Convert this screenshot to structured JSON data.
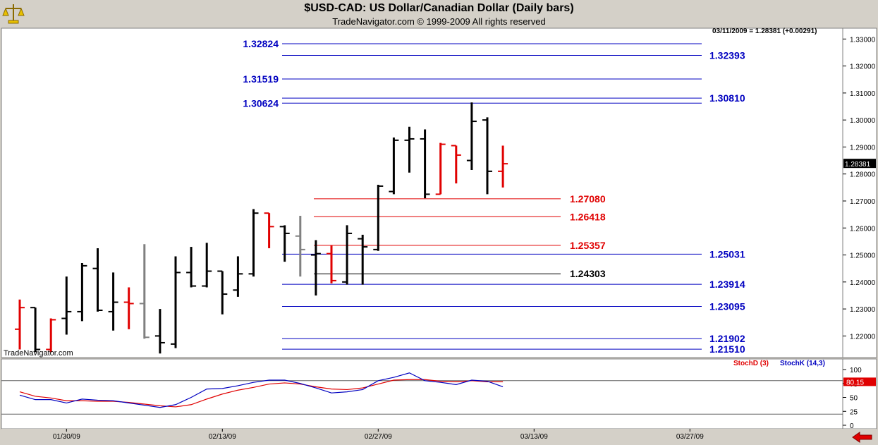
{
  "header": {
    "title": "$USD-CAD:  US Dollar/Canadian Dollar  (Daily bars)",
    "copyright": "TradeNavigator.com © 1999-2009 All rights reserved",
    "last_quote": "03/11/2009 = 1.28381 (+0.00291)",
    "watermark": "TradeNavigator.com"
  },
  "chart_data": [
    {
      "type": "ohlc",
      "title": "$USD-CAD:  US Dollar/Canadian Dollar  (Daily bars)",
      "ylim": [
        1.212,
        1.334
      ],
      "y_ticks": [
        "1.22000",
        "1.23000",
        "1.24000",
        "1.25000",
        "1.26000",
        "1.27000",
        "1.28000",
        "1.29000",
        "1.30000",
        "1.31000",
        "1.32000",
        "1.33000"
      ],
      "y_tick_values": [
        1.22,
        1.23,
        1.24,
        1.25,
        1.26,
        1.27,
        1.28,
        1.29,
        1.3,
        1.31,
        1.32,
        1.33
      ],
      "x_ticks": [
        {
          "label": "01/30/09",
          "index": 3
        },
        {
          "label": "02/13/09",
          "index": 13
        },
        {
          "label": "02/27/09",
          "index": 23
        },
        {
          "label": "03/13/09",
          "index": 33
        },
        {
          "label": "03/27/09",
          "index": 43
        }
      ],
      "last_price_label": "1.28381",
      "bars": [
        {
          "o": 1.2225,
          "h": 1.2335,
          "l": 1.215,
          "c": 1.2305,
          "color": "red"
        },
        {
          "o": 1.2305,
          "h": 1.2305,
          "l": 1.214,
          "c": 1.215,
          "color": "black"
        },
        {
          "o": 1.215,
          "h": 1.2265,
          "l": 1.214,
          "c": 1.226,
          "color": "red"
        },
        {
          "o": 1.2265,
          "h": 1.242,
          "l": 1.2205,
          "c": 1.229,
          "color": "black"
        },
        {
          "o": 1.229,
          "h": 1.247,
          "l": 1.2255,
          "c": 1.246,
          "color": "black"
        },
        {
          "o": 1.245,
          "h": 1.2525,
          "l": 1.229,
          "c": 1.2295,
          "color": "black"
        },
        {
          "o": 1.229,
          "h": 1.2435,
          "l": 1.222,
          "c": 1.2325,
          "color": "black"
        },
        {
          "o": 1.2325,
          "h": 1.238,
          "l": 1.2225,
          "c": 1.232,
          "color": "red"
        },
        {
          "o": 1.232,
          "h": 1.254,
          "l": 1.219,
          "c": 1.2195,
          "color": "gray"
        },
        {
          "o": 1.22,
          "h": 1.23,
          "l": 1.2135,
          "c": 1.2175,
          "color": "black"
        },
        {
          "o": 1.217,
          "h": 1.2495,
          "l": 1.2155,
          "c": 1.2435,
          "color": "black"
        },
        {
          "o": 1.2435,
          "h": 1.253,
          "l": 1.238,
          "c": 1.2385,
          "color": "black"
        },
        {
          "o": 1.2385,
          "h": 1.2545,
          "l": 1.238,
          "c": 1.244,
          "color": "black"
        },
        {
          "o": 1.244,
          "h": 1.244,
          "l": 1.228,
          "c": 1.2355,
          "color": "black"
        },
        {
          "o": 1.237,
          "h": 1.2495,
          "l": 1.2345,
          "c": 1.243,
          "color": "black"
        },
        {
          "o": 1.243,
          "h": 1.267,
          "l": 1.242,
          "c": 1.2655,
          "color": "black"
        },
        {
          "o": 1.2655,
          "h": 1.2655,
          "l": 1.2525,
          "c": 1.2605,
          "color": "red"
        },
        {
          "o": 1.2605,
          "h": 1.261,
          "l": 1.2475,
          "c": 1.258,
          "color": "black"
        },
        {
          "o": 1.257,
          "h": 1.2645,
          "l": 1.242,
          "c": 1.252,
          "color": "gray"
        },
        {
          "o": 1.25,
          "h": 1.2555,
          "l": 1.235,
          "c": 1.2505,
          "color": "black"
        },
        {
          "o": 1.2505,
          "h": 1.2535,
          "l": 1.2395,
          "c": 1.2405,
          "color": "red"
        },
        {
          "o": 1.24,
          "h": 1.261,
          "l": 1.239,
          "c": 1.258,
          "color": "black"
        },
        {
          "o": 1.256,
          "h": 1.2575,
          "l": 1.239,
          "c": 1.253,
          "color": "black"
        },
        {
          "o": 1.252,
          "h": 1.276,
          "l": 1.2515,
          "c": 1.2755,
          "color": "black"
        },
        {
          "o": 1.2735,
          "h": 1.2935,
          "l": 1.2725,
          "c": 1.2925,
          "color": "black"
        },
        {
          "o": 1.2925,
          "h": 1.2975,
          "l": 1.2805,
          "c": 1.293,
          "color": "black"
        },
        {
          "o": 1.293,
          "h": 1.2965,
          "l": 1.271,
          "c": 1.2725,
          "color": "black"
        },
        {
          "o": 1.2725,
          "h": 1.2915,
          "l": 1.2725,
          "c": 1.291,
          "color": "red"
        },
        {
          "o": 1.2905,
          "h": 1.2905,
          "l": 1.2765,
          "c": 1.287,
          "color": "red"
        },
        {
          "o": 1.285,
          "h": 1.3065,
          "l": 1.2815,
          "c": 1.2995,
          "color": "black"
        },
        {
          "o": 1.3,
          "h": 1.301,
          "l": 1.2725,
          "c": 1.281,
          "color": "black"
        },
        {
          "o": 1.281,
          "h": 1.2905,
          "l": 1.275,
          "c": 1.2838,
          "color": "red"
        }
      ],
      "levels": [
        {
          "value": 1.32824,
          "label": "1.32824",
          "color": "blue",
          "side": "left"
        },
        {
          "value": 1.32393,
          "label": "1.32393",
          "color": "blue",
          "side": "right"
        },
        {
          "value": 1.31519,
          "label": "1.31519",
          "color": "blue",
          "side": "left"
        },
        {
          "value": 1.3081,
          "label": "1.30810",
          "color": "blue",
          "side": "right"
        },
        {
          "value": 1.30624,
          "label": "1.30624",
          "color": "blue",
          "side": "left"
        },
        {
          "value": 1.2708,
          "label": "1.27080",
          "color": "red",
          "side": "mid"
        },
        {
          "value": 1.26418,
          "label": "1.26418",
          "color": "red",
          "side": "mid"
        },
        {
          "value": 1.25357,
          "label": "1.25357",
          "color": "red",
          "side": "mid"
        },
        {
          "value": 1.25031,
          "label": "1.25031",
          "color": "blue",
          "side": "right"
        },
        {
          "value": 1.24303,
          "label": "1.24303",
          "color": "black",
          "side": "mid"
        },
        {
          "value": 1.23914,
          "label": "1.23914",
          "color": "blue",
          "side": "right"
        },
        {
          "value": 1.23095,
          "label": "1.23095",
          "color": "blue",
          "side": "right"
        },
        {
          "value": 1.21902,
          "label": "1.21902",
          "color": "blue",
          "side": "right"
        },
        {
          "value": 1.2151,
          "label": "1.21510",
          "color": "blue",
          "side": "right"
        }
      ]
    },
    {
      "type": "line",
      "ylim": [
        0,
        100
      ],
      "y_ticks": [
        "100",
        "75",
        "50",
        "25",
        "0"
      ],
      "y_tick_values": [
        100,
        75,
        50,
        25,
        0
      ],
      "reference_lines": [
        80,
        20
      ],
      "legend": [
        "StochD (3)",
        "StochK (14,3)"
      ],
      "legend_placement": "top-right",
      "last_value_label": "80.15",
      "series": [
        {
          "name": "StochD (3)",
          "color": "red",
          "values": [
            60,
            52,
            49,
            44,
            44,
            43,
            43,
            41,
            38,
            35,
            33,
            37,
            47,
            56,
            63,
            68,
            74,
            76,
            74,
            69,
            65,
            64,
            67,
            74,
            81,
            82,
            82,
            79,
            78,
            80,
            78,
            78
          ]
        },
        {
          "name": "StochK (14,3)",
          "color": "blue",
          "values": [
            54,
            46,
            46,
            40,
            47,
            45,
            44,
            40,
            36,
            32,
            37,
            50,
            65,
            66,
            71,
            77,
            81,
            81,
            75,
            67,
            58,
            60,
            64,
            80,
            86,
            94,
            80,
            77,
            73,
            81,
            79,
            69
          ]
        }
      ]
    }
  ]
}
